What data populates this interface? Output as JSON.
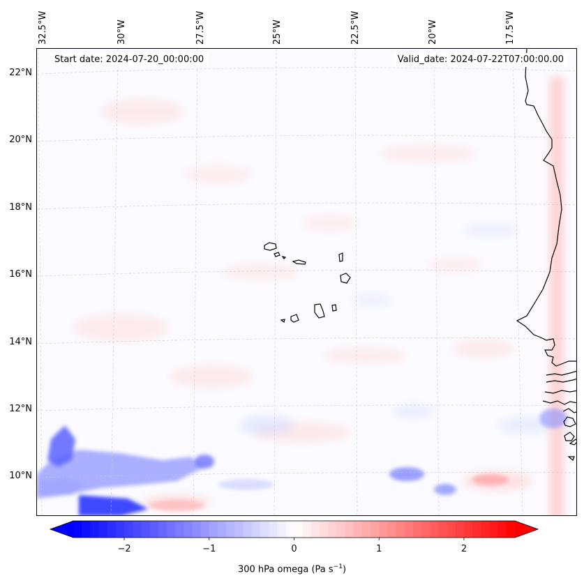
{
  "header": {
    "start_date": "Start date: 2024-07-20_00:00:00",
    "valid_date": "Valid_date: 2024-07-22T07:00:00.00"
  },
  "map": {
    "lon_labels": [
      "32.5°W",
      "30°W",
      "27.5°W",
      "25°W",
      "22.5°W",
      "20°W",
      "17.5°W"
    ],
    "lat_labels": [
      "22°N",
      "20°N",
      "18°N",
      "16°N",
      "14°N",
      "12°N",
      "10°N"
    ],
    "extent": {
      "lon_min": -32.7,
      "lon_max": -15.9,
      "lat_min": 8.9,
      "lat_max": 22.8
    },
    "features": [
      "cape-verde-islands",
      "west-africa-coastline"
    ]
  },
  "colorbar": {
    "ticks": [
      "−2",
      "−1",
      "0",
      "1",
      "2"
    ],
    "tick_values": [
      -2,
      -1,
      0,
      1,
      2
    ],
    "range": [
      -2.6,
      2.6
    ],
    "label": "300 hPa omega (Pa s",
    "label_sup": "−1",
    "label_close": ")",
    "colors": {
      "min": "#0000ff",
      "mid": "#ffffff",
      "max": "#ff0000"
    }
  }
}
